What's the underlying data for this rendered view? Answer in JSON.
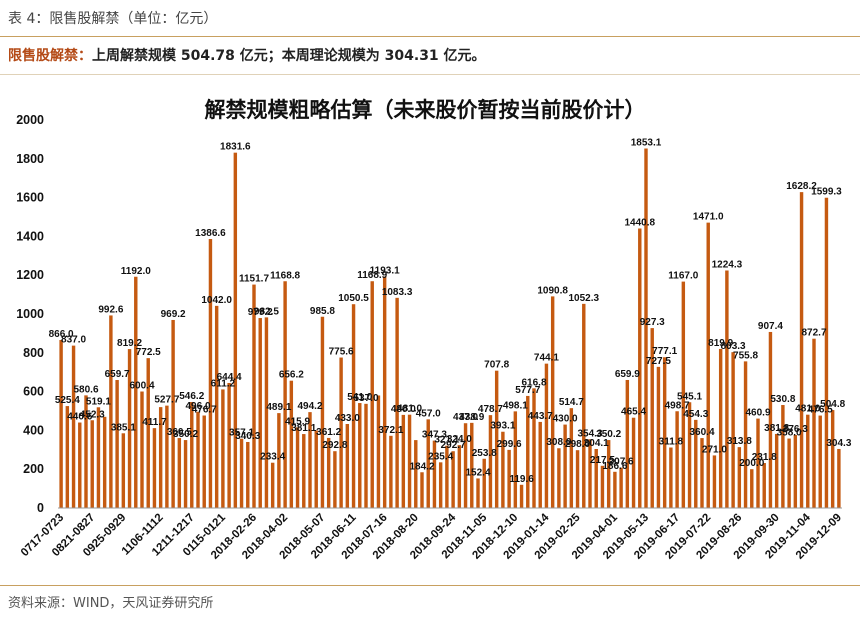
{
  "header": {
    "title": "表 4：限售股解禁（单位：亿元）",
    "summary_label": "限售股解禁：",
    "summary_text": "上周解禁规模 504.78 亿元；本周理论规模为 304.31 亿元。"
  },
  "source": "资料来源：WIND，天风证券研究所",
  "colors": {
    "bar": "#C55A11",
    "rule": "#C8A060"
  },
  "chart_data": {
    "type": "bar",
    "title": "解禁规模粗略估算（未来股价暂按当前股价计）",
    "ylim": [
      0,
      2000
    ],
    "yticks": [
      0,
      200,
      400,
      600,
      800,
      1000,
      1200,
      1400,
      1600,
      1800,
      2000
    ],
    "grid": false,
    "legend": "none",
    "xtick_labels": [
      "0717-0723",
      "0821-0827",
      "0925-0929",
      "1106-1112",
      "1211-1217",
      "0115-0121",
      "2018-02-26",
      "2018-04-02",
      "2018-05-07",
      "2018-06-11",
      "2018-07-16",
      "2018-08-20",
      "2018-09-24",
      "2018-11-05",
      "2018-12-10",
      "2019-01-14",
      "2019-02-25",
      "2019-04-01",
      "2019-05-13",
      "2019-06-17",
      "2019-07-22",
      "2019-08-26",
      "2019-09-30",
      "2019-11-04",
      "2019-12-09"
    ],
    "values": [
      866.0,
      525.4,
      837.0,
      440.6,
      580.6,
      452.3,
      519.1,
      470,
      992.6,
      659.7,
      385.1,
      819.2,
      1192.0,
      600.4,
      772.5,
      411.7,
      520,
      527.7,
      969.2,
      360.5,
      350.2,
      546.2,
      496.0,
      476.7,
      1386.6,
      1042.0,
      611.2,
      644.4,
      1831.6,
      357.1,
      340.3,
      1151.7,
      979.2,
      982.5,
      233.4,
      489.1,
      1168.8,
      656.2,
      415.9,
      381.1,
      494.2,
      400,
      985.8,
      361.2,
      292.8,
      775.6,
      433.0,
      1050.5,
      541.0,
      537.0,
      1168.9,
      580,
      1193.1,
      372.1,
      1083.3,
      480.0,
      481.0,
      350,
      184.2,
      457.0,
      347.3,
      235.4,
      321.1,
      292.7,
      324.0,
      437.0,
      438.9,
      152.4,
      253.8,
      478.7,
      707.8,
      393.1,
      299.6,
      498.1,
      119.6,
      577.7,
      616.8,
      443.7,
      744.1,
      1090.8,
      308.0,
      430.0,
      514.7,
      298.0,
      1052.3,
      354.3,
      304.1,
      217.5,
      350.2,
      186.6,
      207.6,
      659.9,
      465.4,
      1440.8,
      1853.1,
      927.3,
      727.5,
      777.1,
      311.8,
      498.7,
      1167.0,
      545.1,
      454.3,
      360.4,
      1471.0,
      271.0,
      819.9,
      1224.3,
      803.3,
      313.8,
      755.8,
      200.0,
      460.9,
      231.8,
      907.4,
      381.8,
      530.8,
      358.0,
      376.3,
      1628.2,
      481.0,
      872.7,
      476.5,
      1599.3,
      504.8,
      304.3
    ],
    "value_labels": [
      "866.0",
      "525.4",
      "837.0",
      "440.6",
      "580.6",
      "452.3",
      "519.1",
      "",
      "992.6",
      "659.7",
      "385.1",
      "819.2",
      "1192.0",
      "600.4",
      "772.5",
      "411.7",
      "",
      "527.7",
      "969.2",
      "360.5",
      "350.2",
      "546.2",
      "496.0",
      "476.7",
      "1386.6",
      "1042.0",
      "611.2",
      "644.4",
      "1831.6",
      "357.1",
      "340.3",
      "1151.7",
      "979.2",
      "982.5",
      "233.4",
      "489.1",
      "1168.8",
      "656.2",
      "415.9",
      "381.1",
      "494.2",
      "",
      "985.8",
      "361.2",
      "292.8",
      "775.6",
      "433.0",
      "1050.5",
      "541.0",
      "537.0",
      "1168.9",
      "",
      "1193.1",
      "372.1",
      "1083.3",
      "480.0",
      "481.0",
      "",
      "184.2",
      "457.0",
      "347.3",
      "235.4",
      "321.1",
      "292.7",
      "324.0",
      "437.0",
      "438.9",
      "152.4",
      "253.8",
      "478.7",
      "707.8",
      "393.1",
      "299.6",
      "498.1",
      "119.6",
      "577.7",
      "616.8",
      "443.7",
      "744.1",
      "1090.8",
      "308.0",
      "430.0",
      "514.7",
      "298.0",
      "1052.3",
      "354.3",
      "304.1",
      "217.5",
      "350.2",
      "186.6",
      "207.6",
      "659.9",
      "465.4",
      "1440.8",
      "1853.1",
      "927.3",
      "727.5",
      "777.1",
      "311.8",
      "498.7",
      "1167.0",
      "545.1",
      "454.3",
      "360.4",
      "1471.0",
      "271.0",
      "819.9",
      "1224.3",
      "803.3",
      "313.8",
      "755.8",
      "200.0",
      "460.9",
      "231.8",
      "907.4",
      "381.8",
      "530.8",
      "358.0",
      "376.3",
      "1628.2",
      "481.0",
      "872.7",
      "476.5",
      "1599.3",
      "504.8",
      "304.3"
    ]
  }
}
